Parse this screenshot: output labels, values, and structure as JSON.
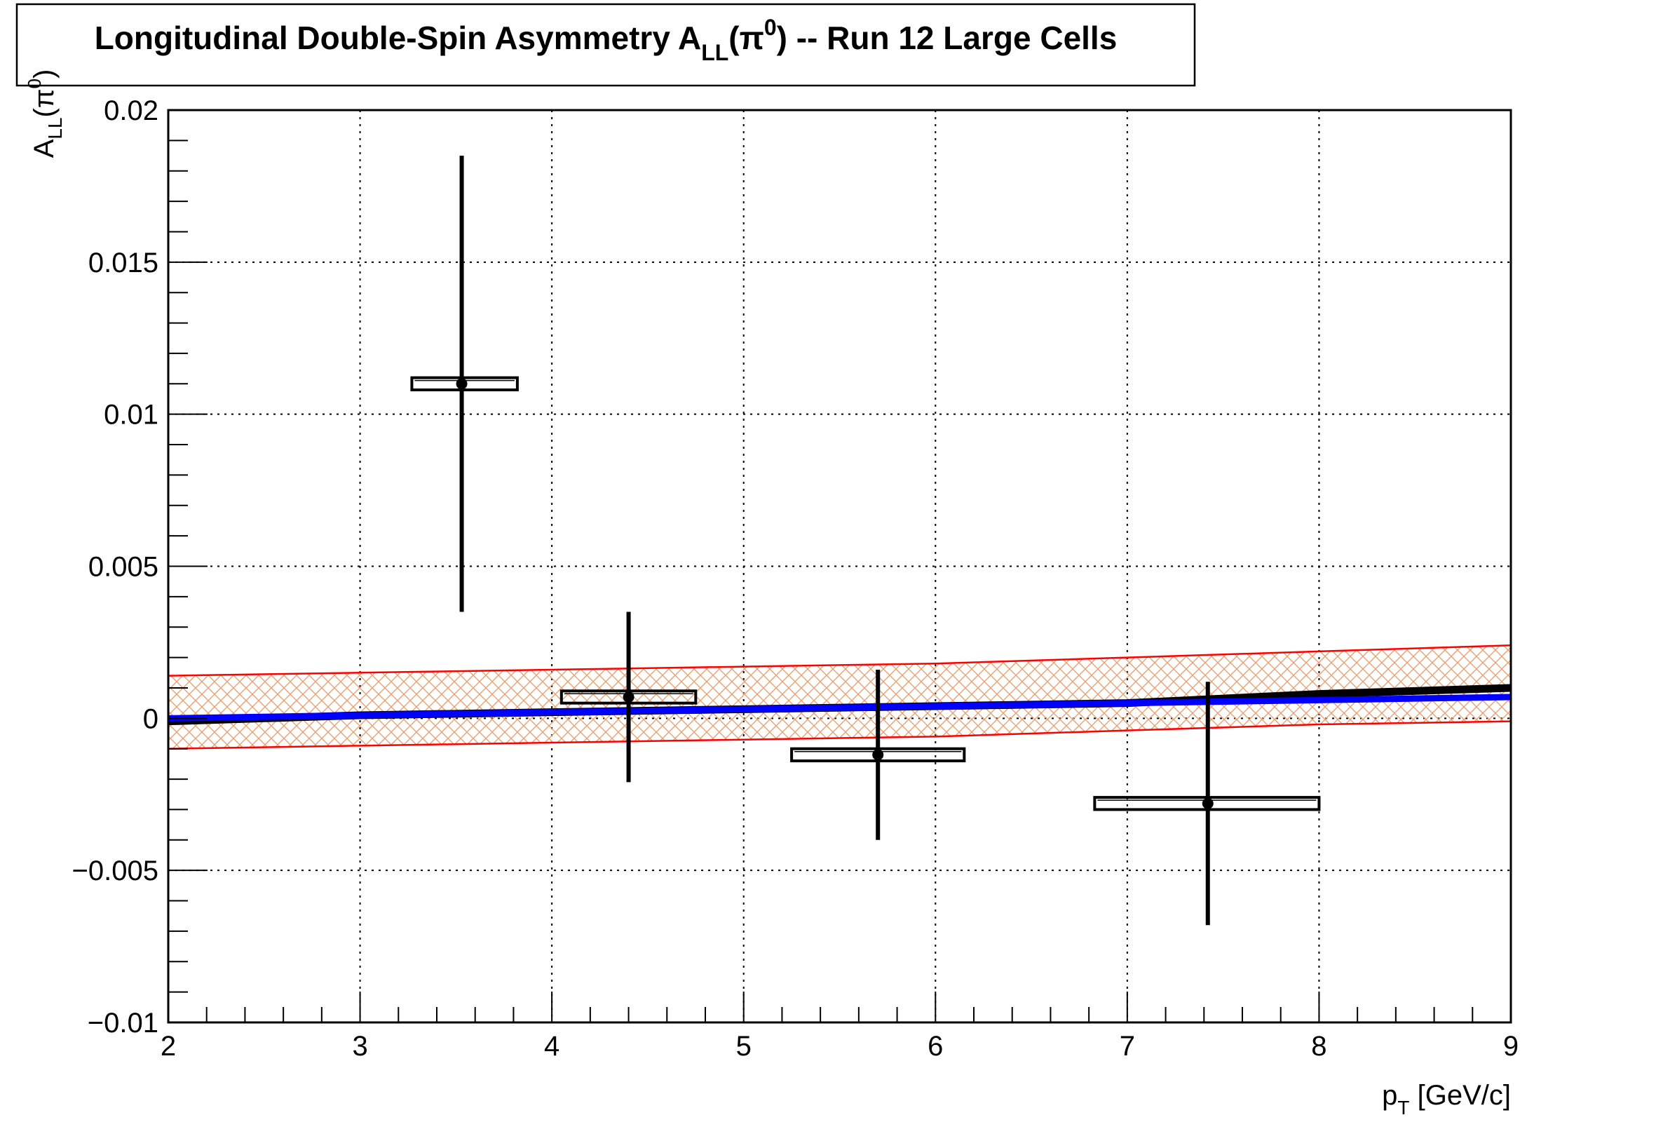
{
  "chart_data": {
    "type": "scatter",
    "title": {
      "main": "Longitudinal Double-Spin Asymmetry A",
      "sub": "LL",
      "paren_open": "(π",
      "sup": "0",
      "rest": ") -- Run 12 Large Cells"
    },
    "xlabel": {
      "main": "p",
      "sub": "T",
      "rest": " [GeV/c]"
    },
    "ylabel": {
      "main": "A",
      "sub": "LL",
      "paren_open": "(π",
      "sup": "0",
      "rest": ")"
    },
    "xlim": [
      2,
      9
    ],
    "ylim": [
      -0.01,
      0.02
    ],
    "x_ticks": [
      {
        "v": 2,
        "label": "2"
      },
      {
        "v": 3,
        "label": "3"
      },
      {
        "v": 4,
        "label": "4"
      },
      {
        "v": 5,
        "label": "5"
      },
      {
        "v": 6,
        "label": "6"
      },
      {
        "v": 7,
        "label": "7"
      },
      {
        "v": 8,
        "label": "8"
      },
      {
        "v": 9,
        "label": "9"
      }
    ],
    "y_ticks": [
      {
        "v": -0.01,
        "label": "−0.01"
      },
      {
        "v": -0.005,
        "label": "−0.005"
      },
      {
        "v": 0,
        "label": "0"
      },
      {
        "v": 0.005,
        "label": "0.005"
      },
      {
        "v": 0.01,
        "label": "0.01"
      },
      {
        "v": 0.015,
        "label": "0.015"
      },
      {
        "v": 0.02,
        "label": "0.02"
      }
    ],
    "grid": true,
    "series": [
      {
        "points": [
          {
            "x": 3.53,
            "y": 0.011,
            "y_err_low": 0.0075,
            "y_err_high": 0.0075,
            "sys_x_low": 3.27,
            "sys_x_high": 3.82,
            "sys_y": 0.0002
          },
          {
            "x": 4.4,
            "y": 0.0007,
            "y_err_low": 0.0028,
            "y_err_high": 0.0028,
            "sys_x_low": 4.05,
            "sys_x_high": 4.75,
            "sys_y": 0.0002
          },
          {
            "x": 5.7,
            "y": -0.0012,
            "y_err_low": 0.0028,
            "y_err_high": 0.0028,
            "sys_x_low": 5.25,
            "sys_x_high": 6.15,
            "sys_y": 0.0002
          },
          {
            "x": 7.42,
            "y": -0.0028,
            "y_err_low": 0.004,
            "y_err_high": 0.004,
            "sys_x_low": 6.83,
            "sys_x_high": 8.0,
            "sys_y": 0.0002
          }
        ]
      }
    ],
    "curves": [
      {
        "color": "#000000",
        "x": [
          2,
          3,
          4,
          5,
          6,
          7,
          8,
          9
        ],
        "y": [
          -0.0001,
          0.0001,
          0.0002,
          0.0003,
          0.0004,
          0.0005,
          0.0008,
          0.001
        ]
      },
      {
        "color": "#0000ff",
        "x": [
          2,
          3,
          4,
          5,
          6,
          7,
          8,
          9
        ],
        "y": [
          0.0,
          0.0001,
          0.0002,
          0.0003,
          0.0004,
          0.0005,
          0.0006,
          0.0007
        ]
      }
    ],
    "band": {
      "color": "#ff0000",
      "fill_color": "#e8a070",
      "x": [
        2,
        3,
        4,
        5,
        6,
        7,
        8,
        9
      ],
      "upper": [
        0.0014,
        0.0015,
        0.0016,
        0.0017,
        0.0018,
        0.002,
        0.0022,
        0.0024
      ],
      "lower": [
        -0.001,
        -0.0009,
        -0.0008,
        -0.0007,
        -0.0006,
        -0.0004,
        -0.0002,
        -0.0001
      ]
    }
  }
}
